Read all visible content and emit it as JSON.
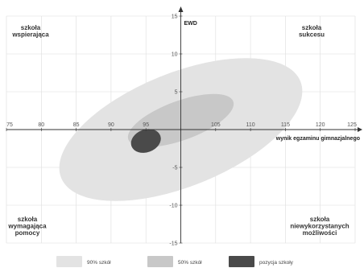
{
  "chart_data": {
    "type": "scatter",
    "x_axis": {
      "label": "wynik egzaminu gimnazjalnego",
      "range": [
        75,
        125
      ],
      "ticks": [
        75,
        80,
        85,
        90,
        95,
        100,
        105,
        110,
        115,
        120,
        125
      ],
      "tick_labels": [
        "75",
        "80",
        "85",
        "90",
        "95",
        "",
        "105",
        "110",
        "115",
        "120",
        "125"
      ]
    },
    "y_axis": {
      "label": "EWD",
      "range": [
        -15,
        15
      ],
      "ticks": [
        15,
        10,
        5,
        0,
        -5,
        -10,
        -15
      ],
      "tick_labels": [
        "15",
        "10",
        "5",
        "",
        "-5",
        "-10",
        "-15"
      ]
    },
    "grid": true,
    "series": [
      {
        "name": "90% szkół",
        "shape": "ellipse",
        "center": [
          100,
          0
        ],
        "rx": 18.5,
        "ry": 7.5,
        "angle_deg": -22,
        "color": "#e3e3e3"
      },
      {
        "name": "50% szkół",
        "shape": "ellipse",
        "center": [
          100,
          1.2
        ],
        "rx": 8,
        "ry": 2.6,
        "angle_deg": -20,
        "color": "#c8c8c8"
      },
      {
        "name": "pozycja szkoły",
        "shape": "ellipse",
        "center": [
          95,
          -1.5
        ],
        "rx": 2.2,
        "ry": 1.5,
        "angle_deg": -20,
        "color": "#4a4a4a"
      }
    ],
    "quadrant_labels": [
      {
        "text": [
          "szkoła",
          "wspierająca"
        ],
        "position": "top-left"
      },
      {
        "text": [
          "szkoła",
          "sukcesu"
        ],
        "position": "top-right"
      },
      {
        "text": [
          "szkoła",
          "wymagająca",
          "pomocy"
        ],
        "position": "bottom-left"
      },
      {
        "text": [
          "szkoła",
          "niewykorzystanych",
          "możliwości"
        ],
        "position": "bottom-right"
      }
    ],
    "legend": {
      "placement": "bottom",
      "items": [
        {
          "label": "90% szkół",
          "color": "#e3e3e3"
        },
        {
          "label": "50% szkół",
          "color": "#c8c8c8"
        },
        {
          "label": "pozycja szkoły",
          "color": "#4a4a4a"
        }
      ]
    }
  }
}
